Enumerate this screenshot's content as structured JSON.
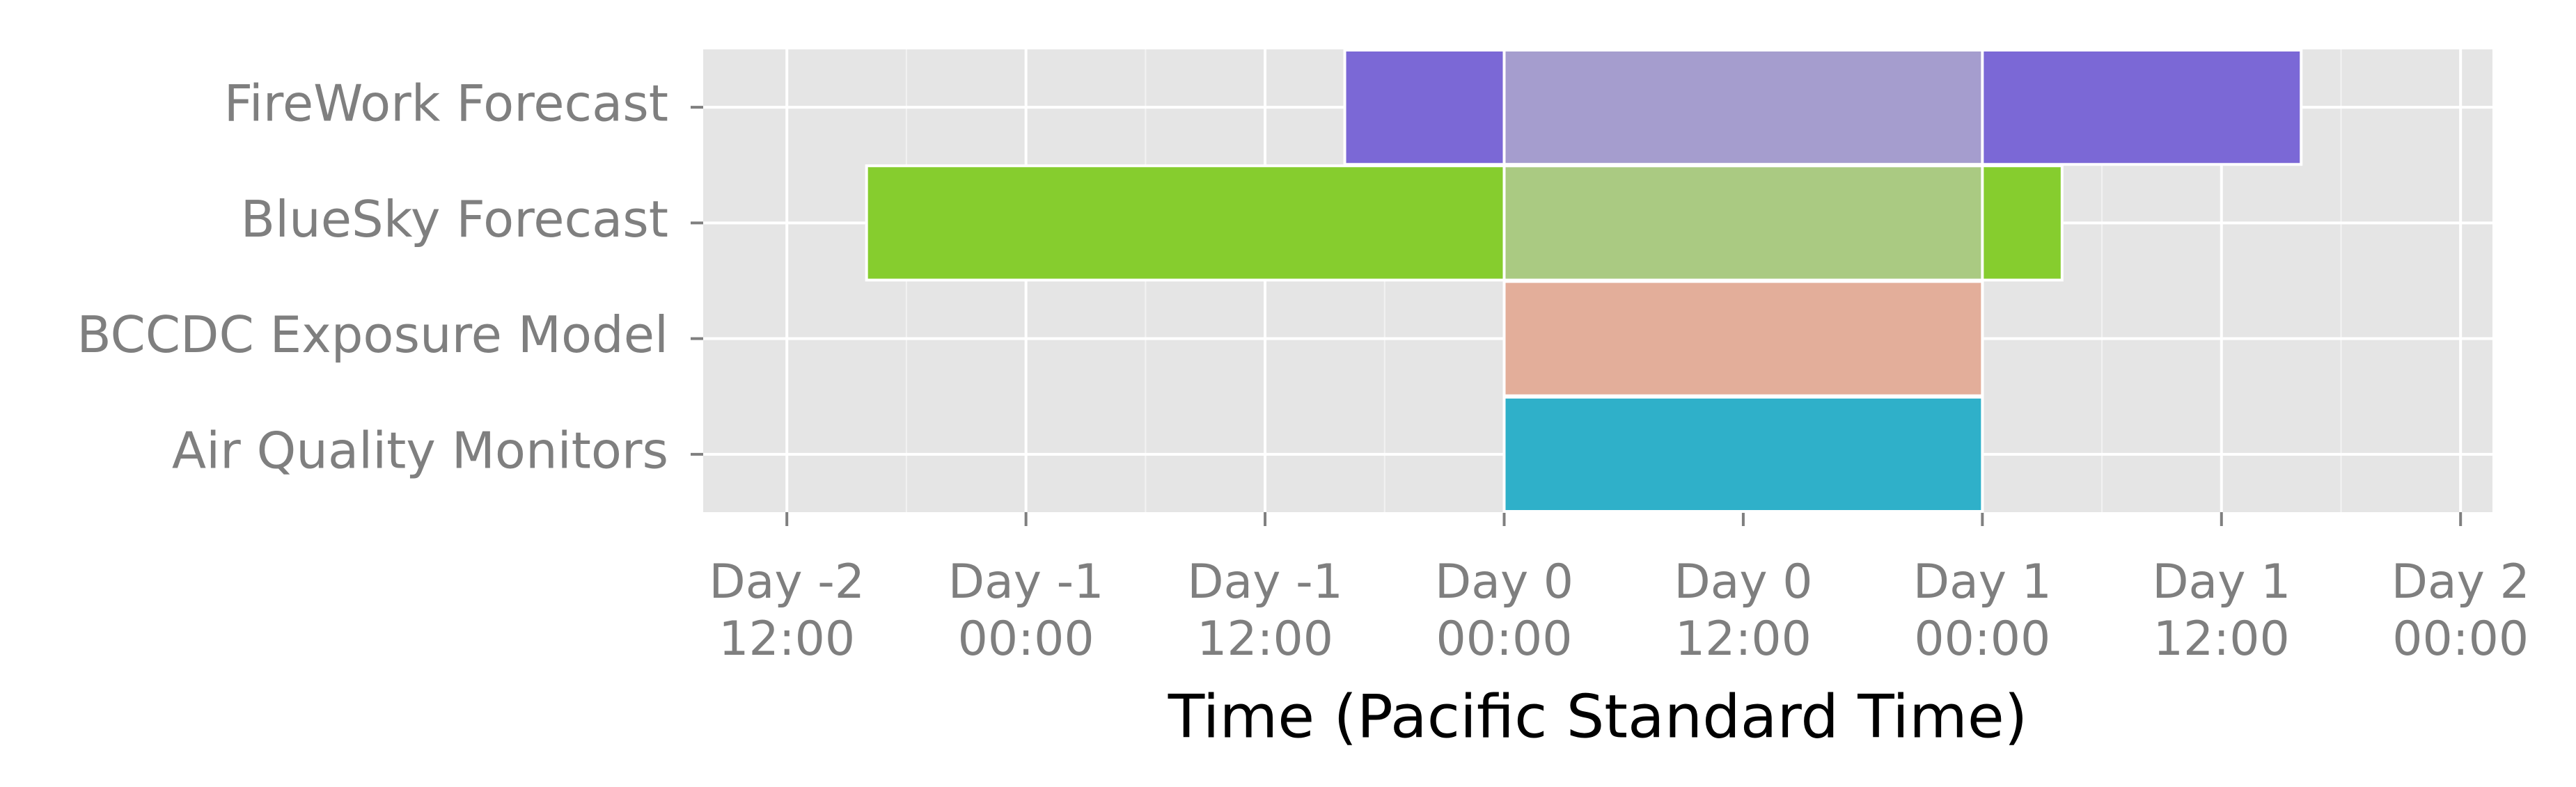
{
  "chart_data": {
    "type": "range-bar",
    "x_label": "Time (Pacific Standard Time)",
    "categories": [
      "FireWork Forecast",
      "BlueSky Forecast",
      "BCCDC Exposure Model",
      "Air Quality Monitors"
    ],
    "starts": [
      -8,
      -32,
      0,
      0
    ],
    "ends": [
      40,
      28,
      24,
      24
    ],
    "colors": [
      "#7b68d6",
      "#86cd2e",
      "#e3ae9a",
      "#2fb0c9"
    ],
    "highlight": [
      0,
      24
    ],
    "highlight_color": "#c8c8c8",
    "xlim": [
      -40.2,
      49.6
    ],
    "xticks": [
      {
        "value": -36,
        "label": "Day -2 12:00"
      },
      {
        "value": -24,
        "label": "Day -1 00:00"
      },
      {
        "value": -12,
        "label": "Day -1 12:00"
      },
      {
        "value": 0,
        "label": "Day 0 00:00"
      },
      {
        "value": 12,
        "label": "Day 0 12:00"
      },
      {
        "value": 24,
        "label": "Day 1 00:00"
      },
      {
        "value": 36,
        "label": "Day 1 12:00"
      },
      {
        "value": 48,
        "label": "Day 2 00:00"
      }
    ],
    "grid": true
  }
}
